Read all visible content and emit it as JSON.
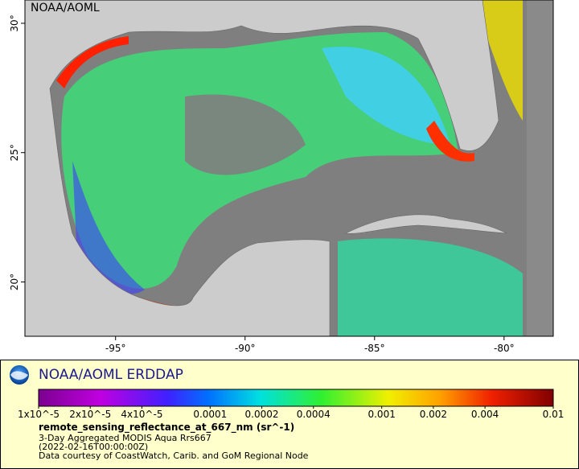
{
  "map": {
    "watermark": "NOAA/AOML",
    "xlim": [
      -98.5,
      -78.1
    ],
    "ylim": [
      17.9,
      30.9
    ],
    "xticks": [
      {
        "value": -95,
        "label": "-95°"
      },
      {
        "value": -90,
        "label": "-90°"
      },
      {
        "value": -85,
        "label": "-85°"
      },
      {
        "value": -80,
        "label": "-80°"
      }
    ],
    "yticks": [
      {
        "value": 20,
        "label": "20°"
      },
      {
        "value": 25,
        "label": "25°"
      },
      {
        "value": 30,
        "label": "30°"
      }
    ]
  },
  "legend": {
    "title": "NOAA/AOML ERDDAP",
    "colorbar": {
      "scale": "log",
      "lim": [
        1e-05,
        0.01
      ],
      "ticks": [
        {
          "value": 1e-05,
          "label": "1x10^-5"
        },
        {
          "value": 2e-05,
          "label": "2x10^-5"
        },
        {
          "value": 4e-05,
          "label": "4x10^-5"
        },
        0.0001,
        0.0002,
        0.0004,
        0.001,
        0.002,
        0.004,
        0.01
      ]
    },
    "variable": "remote_sensing_reflectance_at_667_nm (sr^-1)",
    "lines": [
      "3-Day Aggregated MODIS Aqua Rrs667",
      "(2022-02-16T00:00:00Z)",
      "Data courtesy of CoastWatch, Carib. and GoM Regional Node"
    ]
  }
}
